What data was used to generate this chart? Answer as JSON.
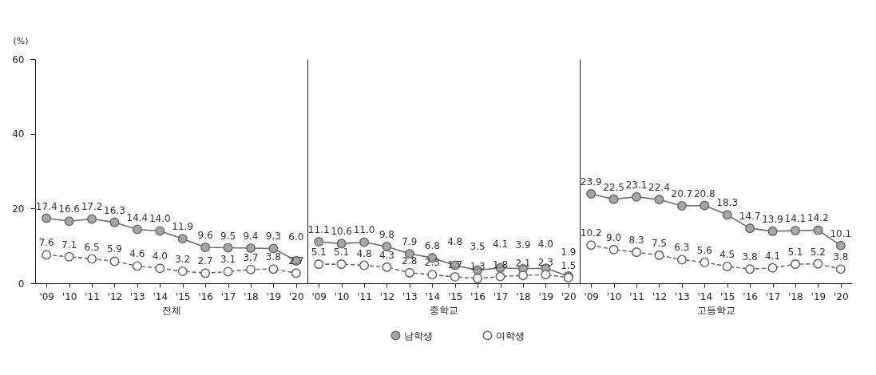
{
  "chart_data": [
    {
      "type": "line",
      "xlabel": "전체",
      "ylabel": "(%)",
      "categories": [
        "'09",
        "'10",
        "'11",
        "'12",
        "'13",
        "'14",
        "'15",
        "'16",
        "'17",
        "'18",
        "'19",
        "'20"
      ],
      "ylim": [
        0,
        60
      ],
      "yticks": [
        0,
        20,
        40,
        60
      ],
      "grid": false,
      "legend": "bottom",
      "marker": "circle",
      "series": [
        {
          "name": "남학생",
          "color": "#a6a6a6",
          "line_style": "solid",
          "values": [
            17.4,
            16.6,
            17.2,
            16.3,
            14.4,
            14.0,
            11.9,
            9.6,
            9.5,
            9.4,
            9.3,
            6.0
          ],
          "value_labels": [
            "17.4",
            "16.6",
            "17.2",
            "16.3",
            "14.4",
            "14.0",
            "11.9",
            "9.6",
            "9.5",
            "9.4",
            "9.3",
            "6.0"
          ]
        },
        {
          "name": "여학생",
          "color": "#ffffff",
          "line_style": "dashed",
          "values": [
            7.6,
            7.1,
            6.5,
            5.9,
            4.6,
            4.0,
            3.2,
            2.7,
            3.1,
            3.7,
            3.8,
            2.7
          ],
          "value_labels": [
            "7.6",
            "7.1",
            "6.5",
            "5.9",
            "4.6",
            "4.0",
            "3.2",
            "2.7",
            "3.1",
            "3.7",
            "3.8",
            "2.7"
          ]
        }
      ]
    },
    {
      "type": "line",
      "xlabel": "중학교",
      "categories": [
        "'09",
        "'10",
        "'11",
        "'12",
        "'13",
        "'14",
        "'15",
        "'16",
        "'17",
        "'18",
        "'19",
        "'20"
      ],
      "ylim": [
        0,
        60
      ],
      "yticks": [
        0,
        20,
        40,
        60
      ],
      "tick_labels": "x",
      "grid": false,
      "legend": "bottom",
      "marker": "circle",
      "series": [
        {
          "name": "남학생",
          "color": "#a6a6a6",
          "line_style": "solid",
          "values": [
            11.1,
            10.6,
            11.0,
            9.8,
            7.9,
            6.8,
            4.8,
            3.5,
            4.1,
            3.9,
            4.0,
            1.9
          ],
          "value_labels": [
            "11.1",
            "10.6",
            "11.0",
            "9.8",
            "7.9",
            "6.8",
            "4.8",
            "3.5",
            "4.1",
            "3.9",
            "4.0",
            "1.9"
          ]
        },
        {
          "name": "여학생",
          "color": "#ffffff",
          "line_style": "dashed",
          "values": [
            5.1,
            5.1,
            4.8,
            4.3,
            2.8,
            2.3,
            1.7,
            1.3,
            1.8,
            2.1,
            2.3,
            1.5
          ],
          "value_labels": [
            "5.1",
            "5.1",
            "4.8",
            "4.3",
            "2.8",
            "2.3",
            "1.7",
            "1.3",
            "1.8",
            "2.1",
            "2.3",
            "1.5"
          ]
        }
      ]
    },
    {
      "type": "line",
      "xlabel": "고등학교",
      "categories": [
        "'09",
        "'10",
        "'11",
        "'12",
        "'13",
        "'14",
        "'15",
        "'16",
        "'17",
        "'18",
        "'19",
        "'20"
      ],
      "ylim": [
        0,
        60
      ],
      "yticks": [
        0,
        20,
        40,
        60
      ],
      "tick_labels": "x",
      "grid": false,
      "legend": "bottom",
      "marker": "circle",
      "series": [
        {
          "name": "남학생",
          "color": "#a6a6a6",
          "line_style": "solid",
          "values": [
            23.9,
            22.5,
            23.1,
            22.4,
            20.7,
            20.8,
            18.3,
            14.7,
            13.9,
            14.1,
            14.2,
            10.1
          ],
          "value_labels": [
            "23.9",
            "22.5",
            "23.1",
            "22.4",
            "20.7",
            "20.8",
            "18.3",
            "14.7",
            "13.9",
            "14.1",
            "14.2",
            "10.1"
          ]
        },
        {
          "name": "여학생",
          "color": "#ffffff",
          "line_style": "dashed",
          "values": [
            10.2,
            9.0,
            8.3,
            7.5,
            6.3,
            5.6,
            4.5,
            3.8,
            4.1,
            5.1,
            5.2,
            3.8
          ],
          "value_labels": [
            "10.2",
            "9.0",
            "8.3",
            "7.5",
            "6.3",
            "5.6",
            "4.5",
            "3.8",
            "4.1",
            "5.1",
            "5.2",
            "3.8"
          ]
        }
      ]
    }
  ]
}
